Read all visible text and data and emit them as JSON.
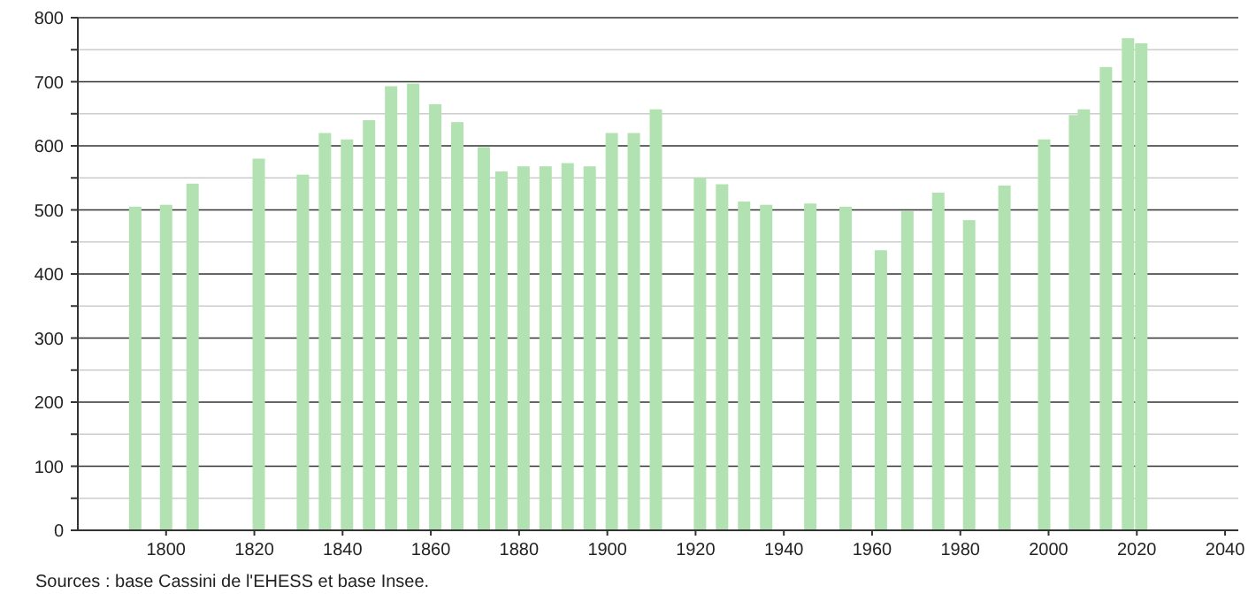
{
  "chart_data": {
    "type": "bar",
    "x": [
      1793,
      1800,
      1806,
      1821,
      1831,
      1836,
      1841,
      1846,
      1851,
      1856,
      1861,
      1866,
      1872,
      1876,
      1881,
      1886,
      1891,
      1896,
      1901,
      1906,
      1911,
      1921,
      1926,
      1931,
      1936,
      1946,
      1954,
      1962,
      1968,
      1975,
      1982,
      1990,
      1999,
      2006,
      2008,
      2013,
      2018,
      2021
    ],
    "values": [
      505,
      508,
      541,
      580,
      555,
      620,
      610,
      640,
      693,
      697,
      665,
      637,
      598,
      560,
      568,
      568,
      573,
      568,
      620,
      620,
      657,
      550,
      540,
      513,
      508,
      510,
      505,
      437,
      498,
      527,
      484,
      538,
      610,
      648,
      657,
      723,
      768,
      760
    ],
    "color": "#b2e2b2",
    "xlim": [
      1780,
      2043
    ],
    "xticks": [
      1800,
      1820,
      1840,
      1860,
      1880,
      1900,
      1920,
      1940,
      1960,
      1980,
      2000,
      2020,
      2040
    ],
    "ylim": [
      0,
      800
    ],
    "yticks": [
      0,
      {
        "value": 50,
        "label": null
      },
      100,
      {
        "value": 150,
        "label": null
      },
      200,
      {
        "value": 250,
        "label": null
      },
      300,
      {
        "value": 350,
        "label": null
      },
      400,
      {
        "value": 450,
        "label": null
      },
      500,
      {
        "value": 550,
        "label": null
      },
      600,
      {
        "value": 650,
        "label": null
      },
      700,
      {
        "value": 750,
        "label": null
      },
      800
    ],
    "grid": "y",
    "annotations": [
      "Sources : base Cassini de l'EHESS et base Insee."
    ]
  }
}
